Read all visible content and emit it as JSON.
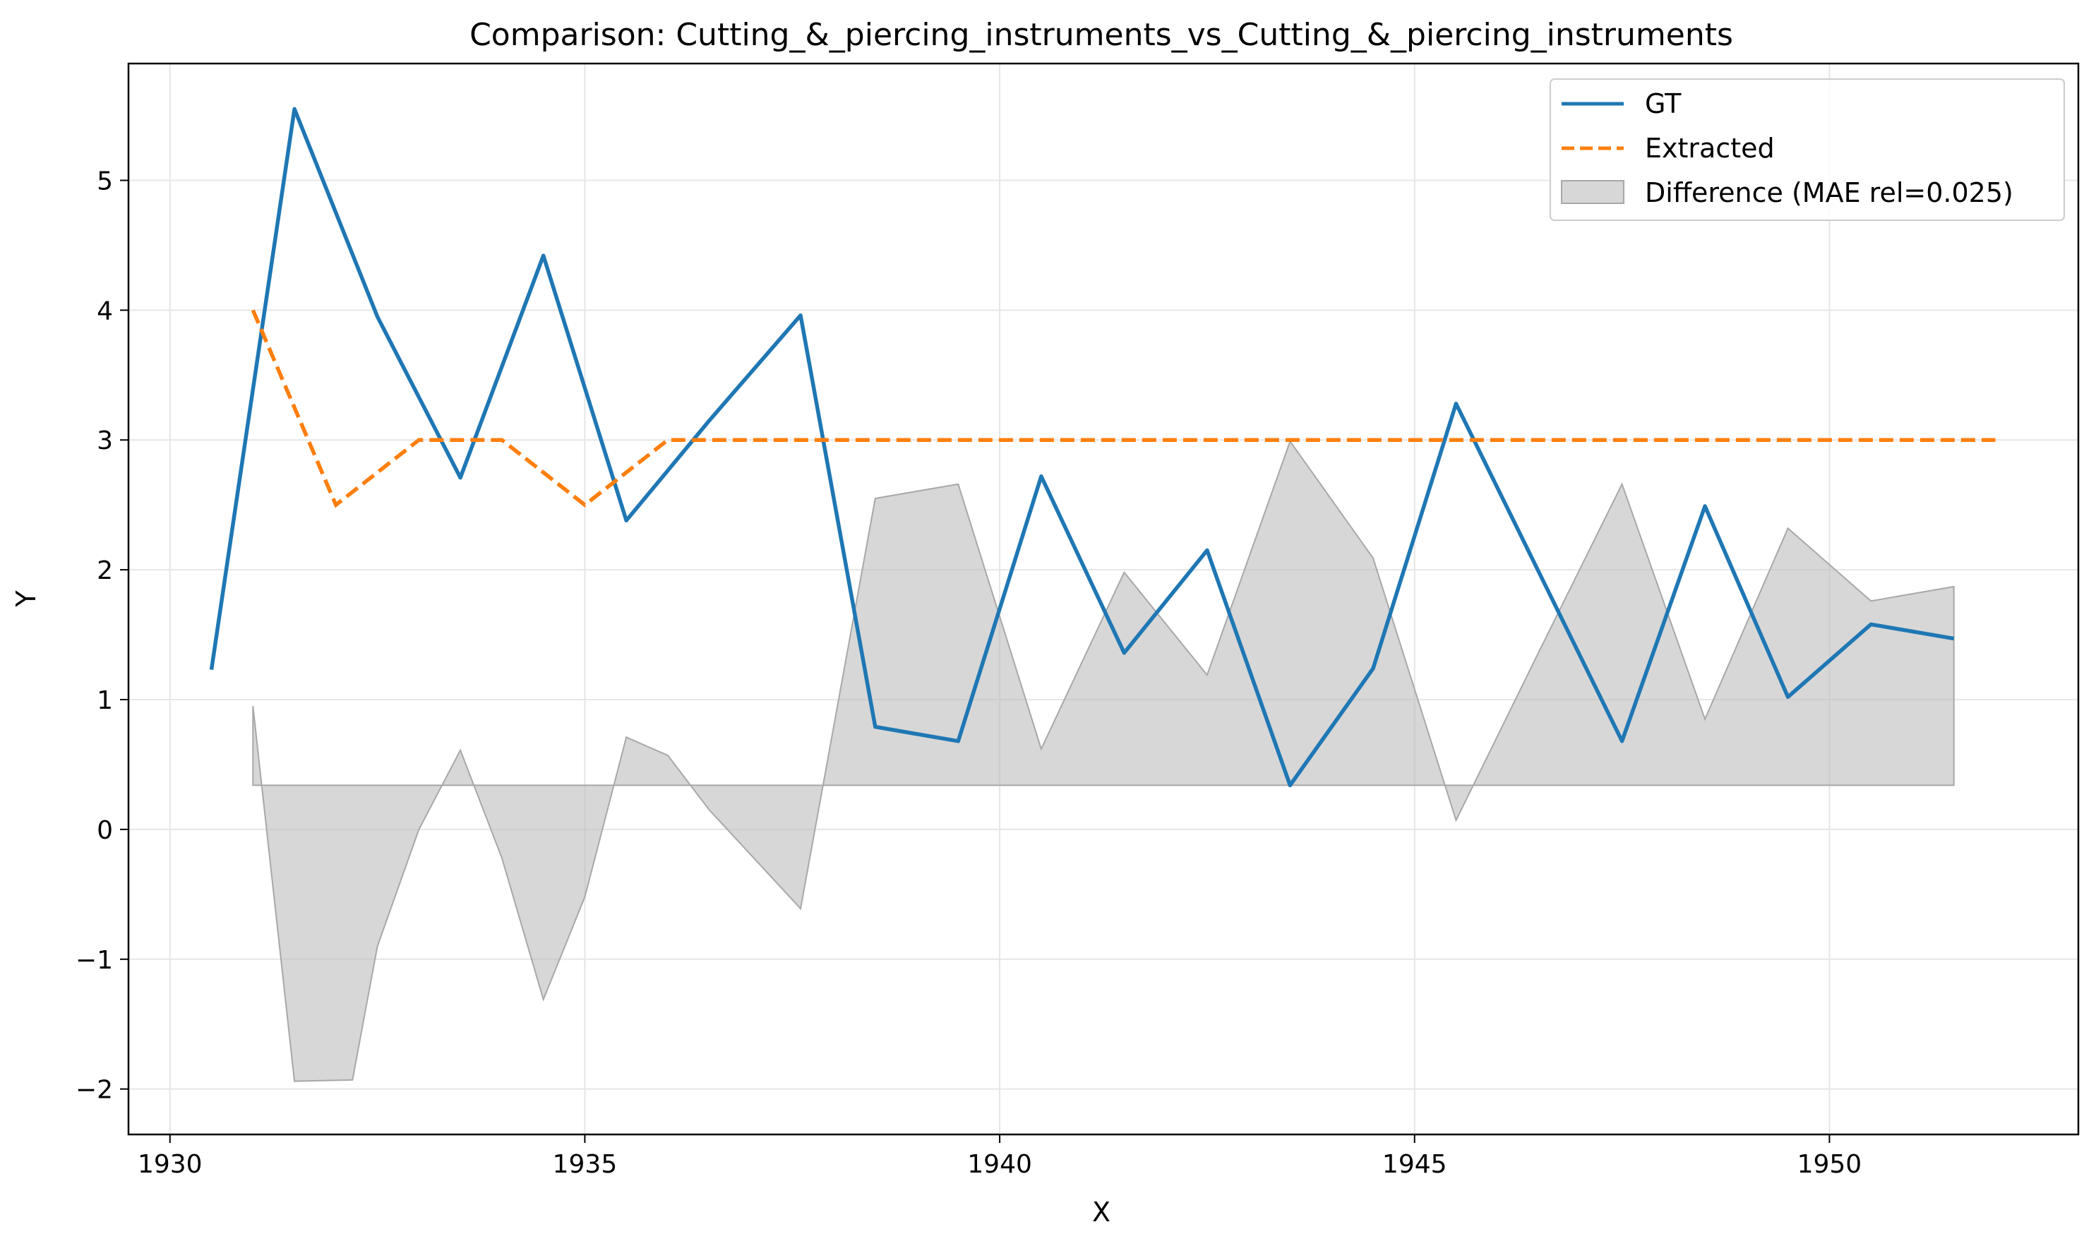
{
  "chart_data": {
    "type": "line",
    "title": "Comparison: Cutting_&_piercing_instruments_vs_Cutting_&_piercing_instruments",
    "xlabel": "X",
    "ylabel": "Y",
    "xlim": [
      1929.5,
      1953.0
    ],
    "ylim": [
      -2.35,
      5.9
    ],
    "xticks": [
      1930,
      1935,
      1940,
      1945,
      1950
    ],
    "yticks": [
      -2,
      -1,
      0,
      1,
      2,
      3,
      4,
      5
    ],
    "ytick_labels": [
      "−2",
      "−1",
      "0",
      "1",
      "2",
      "3",
      "4",
      "5"
    ],
    "grid": true,
    "legend_position": "top-right",
    "series": [
      {
        "name": "GT",
        "style": "solid",
        "color": "#1f77b4",
        "x": [
          1930.5,
          1931.5,
          1932.5,
          1933.5,
          1934.5,
          1935.5,
          1936.5,
          1937.6,
          1938.5,
          1939.5,
          1940.5,
          1941.5,
          1942.5,
          1943.5,
          1944.5,
          1945.5,
          1946.5,
          1947.5,
          1948.5,
          1949.5,
          1950.5,
          1951.5
        ],
        "values": [
          1.23,
          5.55,
          3.95,
          2.71,
          4.42,
          2.38,
          3.15,
          3.96,
          0.79,
          0.68,
          2.72,
          1.36,
          2.15,
          0.34,
          1.24,
          3.28,
          1.98,
          0.68,
          2.49,
          1.02,
          1.58,
          1.47
        ]
      },
      {
        "name": "Extracted",
        "style": "dashed",
        "color": "#ff7f0e",
        "x": [
          1931.0,
          1932.0,
          1933.0,
          1934.0,
          1935.0,
          1936.0,
          1937.0,
          1938.0,
          1939.0,
          1940.0,
          1941.0,
          1942.0,
          1943.0,
          1944.0,
          1945.0,
          1946.0,
          1947.0,
          1948.0,
          1949.0,
          1950.0,
          1951.0,
          1952.0
        ],
        "values": [
          4.0,
          2.5,
          3.0,
          3.0,
          2.5,
          3.0,
          3.0,
          3.0,
          3.0,
          3.0,
          3.0,
          3.0,
          3.0,
          3.0,
          3.0,
          3.0,
          3.0,
          3.0,
          3.0,
          3.0,
          3.0,
          3.0
        ]
      }
    ],
    "difference_band": {
      "name": "Difference (MAE rel=0.025)",
      "color": "#bdbdbd",
      "baseline": 0.34,
      "x": [
        1931.0,
        1931.5,
        1932.2,
        1932.5,
        1933.0,
        1933.5,
        1934.0,
        1934.5,
        1935.0,
        1935.5,
        1936.0,
        1936.5,
        1937.6,
        1938.5,
        1939.5,
        1940.5,
        1941.5,
        1942.5,
        1943.5,
        1944.5,
        1945.5,
        1946.5,
        1947.5,
        1948.5,
        1949.5,
        1950.5,
        1951.5
      ],
      "values": [
        0.95,
        -1.94,
        -1.93,
        -0.9,
        0.0,
        0.61,
        -0.22,
        -1.31,
        -0.52,
        0.71,
        0.57,
        0.15,
        -0.61,
        2.55,
        2.66,
        0.62,
        1.98,
        1.19,
        2.99,
        2.09,
        0.07,
        1.37,
        2.66,
        0.85,
        2.32,
        1.76,
        1.87
      ]
    }
  }
}
